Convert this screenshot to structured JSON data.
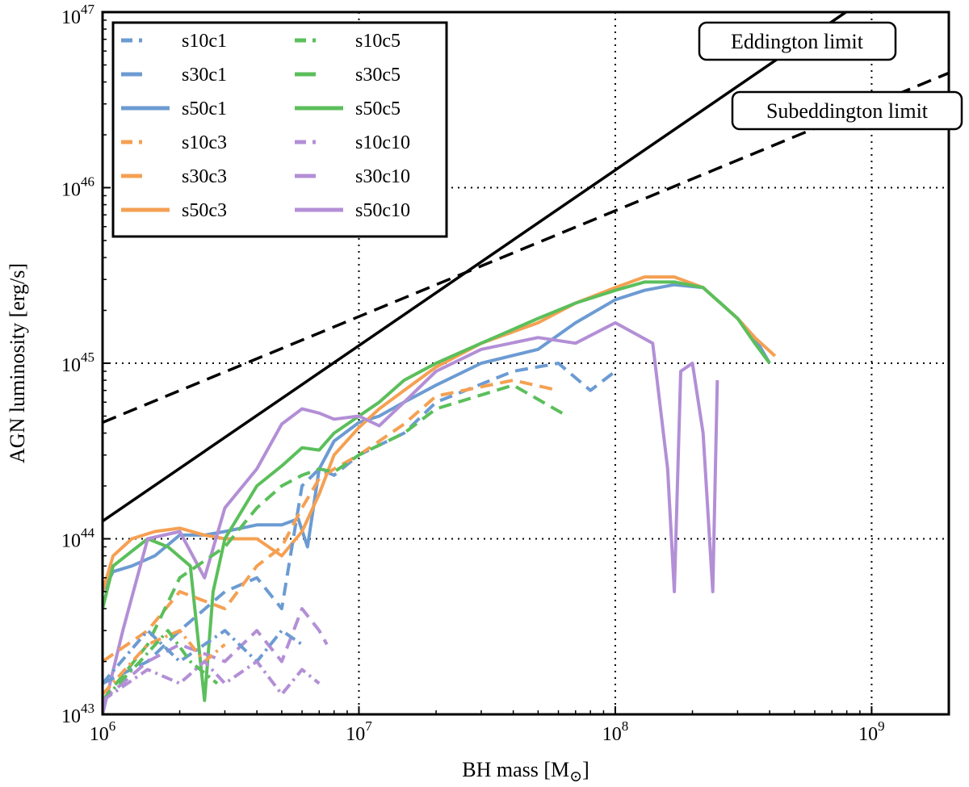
{
  "chart_data": {
    "type": "line",
    "xscale": "log",
    "yscale": "log",
    "xlim": [
      1000000,
      2000000000
    ],
    "ylim": [
      1e+43,
      1e+47
    ],
    "xlabel": "BH mass [M",
    "xlabel_symbol": "⊙",
    "xlabel_end": "]",
    "ylabel": "AGN luminosity [erg/s]",
    "grid": true,
    "x_ticks": [
      {
        "value": 1000000,
        "base": "10",
        "exp": "6"
      },
      {
        "value": 10000000,
        "base": "10",
        "exp": "7"
      },
      {
        "value": 100000000,
        "base": "10",
        "exp": "8"
      },
      {
        "value": 1000000000,
        "base": "10",
        "exp": "9"
      }
    ],
    "y_ticks": [
      {
        "value": 1e+43,
        "base": "10",
        "exp": "43"
      },
      {
        "value": 1e+44,
        "base": "10",
        "exp": "44"
      },
      {
        "value": 1e+45,
        "base": "10",
        "exp": "45"
      },
      {
        "value": 1e+46,
        "base": "10",
        "exp": "46"
      },
      {
        "value": 1e+47,
        "base": "10",
        "exp": "47"
      }
    ],
    "reference_lines": [
      {
        "name": "Eddington limit",
        "style": "solid",
        "x": [
          1000000,
          1000000000
        ],
        "y": [
          1.26e+44,
          1.26e+47
        ]
      },
      {
        "name": "Subeddington limit",
        "style": "dashed",
        "x": [
          1000000,
          2000000000
        ],
        "y": [
          4.6e+44,
          4.5e+46
        ]
      }
    ],
    "legend_position": "top-left",
    "legend": [
      {
        "label": "s10c1",
        "color": "#6c9bd2",
        "dash": "dashdot"
      },
      {
        "label": "s30c1",
        "color": "#6c9bd2",
        "dash": "dashed"
      },
      {
        "label": "s50c1",
        "color": "#6c9bd2",
        "dash": "solid"
      },
      {
        "label": "s10c3",
        "color": "#f5a053",
        "dash": "dashdot"
      },
      {
        "label": "s30c3",
        "color": "#f5a053",
        "dash": "dashed"
      },
      {
        "label": "s50c3",
        "color": "#f5a053",
        "dash": "solid"
      },
      {
        "label": "s10c5",
        "color": "#5bbf5b",
        "dash": "dashdot"
      },
      {
        "label": "s30c5",
        "color": "#5bbf5b",
        "dash": "dashed"
      },
      {
        "label": "s50c5",
        "color": "#5bbf5b",
        "dash": "solid"
      },
      {
        "label": "s10c10",
        "color": "#b38fd6",
        "dash": "dashdot"
      },
      {
        "label": "s30c10",
        "color": "#b38fd6",
        "dash": "dashed"
      },
      {
        "label": "s50c10",
        "color": "#b38fd6",
        "dash": "solid"
      }
    ],
    "series": [
      {
        "name": "s50c1",
        "color": "#6c9bd2",
        "dash": "solid",
        "x": [
          1000000,
          1100000,
          1300000,
          1600000,
          2000000,
          2500000,
          3000000,
          4000000,
          5000000,
          5800000,
          6300000,
          7000000,
          8000000,
          10000000,
          12000000,
          15000000,
          20000000,
          30000000,
          50000000,
          70000000,
          100000000,
          130000000,
          170000000,
          220000000,
          300000000,
          350000000,
          400000000
        ],
        "y": [
          5e+43,
          6.5e+43,
          7e+43,
          8e+43,
          1.05e+44,
          1.05e+44,
          1.1e+44,
          1.2e+44,
          1.2e+44,
          1.3e+44,
          9e+43,
          2.5e+44,
          3.6e+44,
          4.6e+44,
          5e+44,
          6e+44,
          7.5e+44,
          1e+45,
          1.2e+45,
          1.7e+45,
          2.3e+45,
          2.6e+45,
          2.8e+45,
          2.7e+45,
          1.8e+45,
          1.4e+45,
          1e+45
        ]
      },
      {
        "name": "s50c3",
        "color": "#f5a053",
        "dash": "solid",
        "x": [
          1000000,
          1100000,
          1300000,
          1600000,
          2000000,
          2500000,
          3000000,
          4000000,
          5000000,
          6000000,
          7000000,
          8000000,
          10000000,
          12000000,
          15000000,
          20000000,
          30000000,
          50000000,
          70000000,
          100000000,
          130000000,
          170000000,
          220000000,
          300000000,
          350000000,
          420000000
        ],
        "y": [
          5e+43,
          8e+43,
          1e+44,
          1.1e+44,
          1.15e+44,
          1.05e+44,
          1e+44,
          1e+44,
          8e+43,
          1.1e+44,
          1.8e+44,
          3e+44,
          4.3e+44,
          5.5e+44,
          7e+44,
          9.5e+44,
          1.3e+45,
          1.7e+45,
          2.2e+45,
          2.7e+45,
          3.1e+45,
          3.1e+45,
          2.7e+45,
          1.8e+45,
          1.4e+45,
          1.1e+45
        ]
      },
      {
        "name": "s50c5",
        "color": "#5bbf5b",
        "dash": "solid",
        "x": [
          1000000,
          1100000,
          1300000,
          1500000,
          1800000,
          2200000,
          2500000,
          2700000,
          3000000,
          4000000,
          5000000,
          6000000,
          7000000,
          8000000,
          10000000,
          12000000,
          15000000,
          20000000,
          30000000,
          50000000,
          70000000,
          100000000,
          130000000,
          170000000,
          220000000,
          300000000,
          350000000,
          400000000
        ],
        "y": [
          4e+43,
          7e+43,
          8.5e+43,
          1e+44,
          9e+43,
          7e+43,
          1.2e+43,
          5e+43,
          1e+44,
          2e+44,
          2.6e+44,
          3.3e+44,
          3.2e+44,
          4e+44,
          5e+44,
          6e+44,
          8e+44,
          1e+45,
          1.3e+45,
          1.8e+45,
          2.2e+45,
          2.6e+45,
          2.9e+45,
          2.9e+45,
          2.7e+45,
          1.8e+45,
          1.3e+45,
          1e+45
        ]
      },
      {
        "name": "s50c10",
        "color": "#b38fd6",
        "dash": "solid",
        "x": [
          1000000,
          1200000,
          1500000,
          2000000,
          2500000,
          3000000,
          4000000,
          5000000,
          6000000,
          7000000,
          8000000,
          10000000,
          12000000,
          15000000,
          20000000,
          30000000,
          50000000,
          70000000,
          100000000,
          140000000,
          160000000,
          170000000,
          180000000,
          200000000,
          220000000,
          240000000,
          250000000
        ],
        "y": [
          1e+43,
          3e+43,
          1e+44,
          1.1e+44,
          6e+43,
          1.5e+44,
          2.5e+44,
          4.5e+44,
          5.5e+44,
          5.2e+44,
          4.8e+44,
          5e+44,
          4.4e+44,
          6e+44,
          9e+44,
          1.2e+45,
          1.4e+45,
          1.3e+45,
          1.7e+45,
          1.3e+45,
          2.5e+44,
          5e+43,
          9e+44,
          1e+45,
          4e+44,
          5e+43,
          8e+44
        ]
      },
      {
        "name": "s30c1",
        "color": "#6c9bd2",
        "dash": "dashed",
        "x": [
          1000000,
          1500000,
          2000000,
          3000000,
          4000000,
          5000000,
          6000000,
          7000000,
          8000000,
          10000000,
          15000000,
          20000000,
          40000000,
          60000000,
          80000000,
          100000000
        ],
        "y": [
          1.5e+43,
          2e+43,
          3e+43,
          5e+43,
          6e+43,
          4e+43,
          2e+44,
          2.5e+44,
          2.3e+44,
          3e+44,
          4e+44,
          6e+44,
          9e+44,
          1e+45,
          7e+44,
          9e+44
        ]
      },
      {
        "name": "s30c3",
        "color": "#f5a053",
        "dash": "dashed",
        "x": [
          1000000,
          1500000,
          2000000,
          3000000,
          4000000,
          5000000,
          6000000,
          7000000,
          8000000,
          10000000,
          15000000,
          20000000,
          40000000,
          60000000
        ],
        "y": [
          2e+43,
          3e+43,
          5e+43,
          4e+43,
          7e+43,
          9e+43,
          1.5e+44,
          2.2e+44,
          2.5e+44,
          3e+44,
          4.5e+44,
          6.5e+44,
          8e+44,
          7e+44
        ]
      },
      {
        "name": "s30c5",
        "color": "#5bbf5b",
        "dash": "dashed",
        "x": [
          1000000,
          1500000,
          2000000,
          3000000,
          4000000,
          5000000,
          6000000,
          7000000,
          8000000,
          10000000,
          15000000,
          20000000,
          40000000,
          65000000
        ],
        "y": [
          1.2e+43,
          2.5e+43,
          6e+43,
          9e+43,
          1.5e+44,
          2e+44,
          2.3e+44,
          2.5e+44,
          2.4e+44,
          3e+44,
          4e+44,
          5.5e+44,
          7.5e+44,
          5e+44
        ]
      },
      {
        "name": "s30c10",
        "color": "#b38fd6",
        "dash": "dashed",
        "x": [
          1000000,
          1500000,
          2000000,
          3000000,
          4000000,
          5000000,
          6000000,
          7000000,
          7500000
        ],
        "y": [
          1.2e+43,
          2e+43,
          2.5e+43,
          2e+43,
          3e+43,
          2e+43,
          4e+43,
          3e+43,
          2.5e+43
        ]
      },
      {
        "name": "s10c1",
        "color": "#6c9bd2",
        "dash": "dashdot",
        "x": [
          1000000,
          1500000,
          2000000,
          3000000,
          4000000,
          5000000,
          6000000
        ],
        "y": [
          1.5e+43,
          3e+43,
          2e+43,
          3e+43,
          2e+43,
          3e+43,
          2.5e+43
        ]
      },
      {
        "name": "s10c3",
        "color": "#f5a053",
        "dash": "dashdot",
        "x": [
          1000000,
          1500000,
          2000000,
          2500000,
          3000000
        ],
        "y": [
          1.3e+43,
          2.5e+43,
          3e+43,
          2e+43,
          2.5e+43
        ]
      },
      {
        "name": "s10c5",
        "color": "#5bbf5b",
        "dash": "dashdot",
        "x": [
          1000000,
          1400000,
          1800000,
          2200000,
          2800000
        ],
        "y": [
          1.2e+43,
          2e+43,
          3e+43,
          2e+43,
          1.5e+43
        ]
      },
      {
        "name": "s10c10",
        "color": "#b38fd6",
        "dash": "dashdot",
        "x": [
          1000000,
          1500000,
          2000000,
          2500000,
          3000000,
          4000000,
          5000000,
          6000000,
          7000000
        ],
        "y": [
          1.2e+43,
          1.8e+43,
          1.5e+43,
          2e+43,
          1.5e+43,
          2e+43,
          1.3e+43,
          1.8e+43,
          1.5e+43
        ]
      }
    ]
  }
}
